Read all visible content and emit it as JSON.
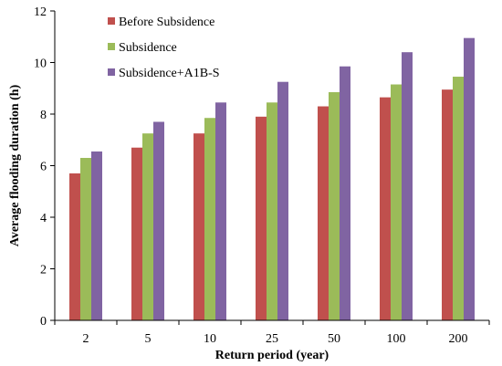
{
  "chart_data": {
    "type": "bar",
    "categories": [
      "2",
      "5",
      "10",
      "25",
      "50",
      "100",
      "200"
    ],
    "series": [
      {
        "name": "Before Subsidence",
        "color": "#c0504d",
        "values": [
          5.7,
          6.7,
          7.25,
          7.9,
          8.3,
          8.65,
          8.95
        ]
      },
      {
        "name": "Subsidence",
        "color": "#9bbb59",
        "values": [
          6.3,
          7.25,
          7.85,
          8.45,
          8.85,
          9.15,
          9.45
        ]
      },
      {
        "name": "Subsidence+A1B-S",
        "color": "#8064a2",
        "values": [
          6.55,
          7.7,
          8.45,
          9.25,
          9.85,
          10.4,
          10.95
        ]
      }
    ],
    "xlabel": "Return period (year)",
    "ylabel": "Average flooding duration (h)",
    "ylim": [
      0,
      12
    ],
    "yticks": [
      0,
      2,
      4,
      6,
      8,
      10,
      12
    ],
    "grid": false,
    "legend_position": "top-left"
  }
}
